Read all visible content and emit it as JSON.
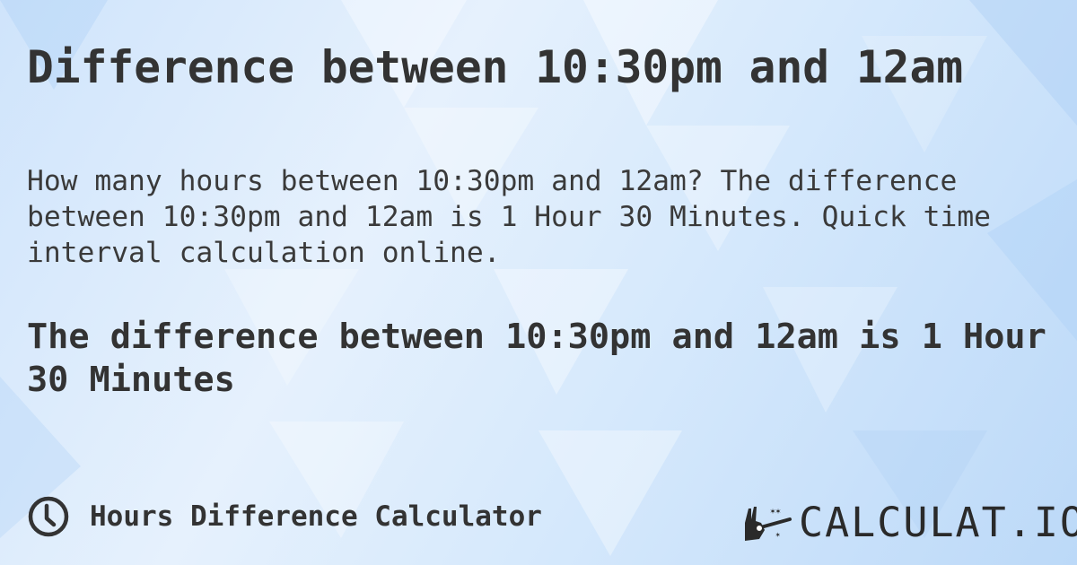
{
  "title": "Difference between 10:30pm and 12am",
  "description": "How many hours between 10:30pm and 12am? The difference between 10:30pm and 12am is 1 Hour 30 Minutes. Quick time interval calculation online.",
  "result": "The difference between 10:30pm and 12am is 1 Hour 30 Minutes",
  "footer": {
    "icon": "clock-icon",
    "label": "Hours Difference Calculator"
  },
  "logo": {
    "text": "CALCULAT.IO",
    "icon": "magic-wand-hand-icon"
  },
  "colors": {
    "text": "#333333",
    "background": "#d6e9fc"
  }
}
